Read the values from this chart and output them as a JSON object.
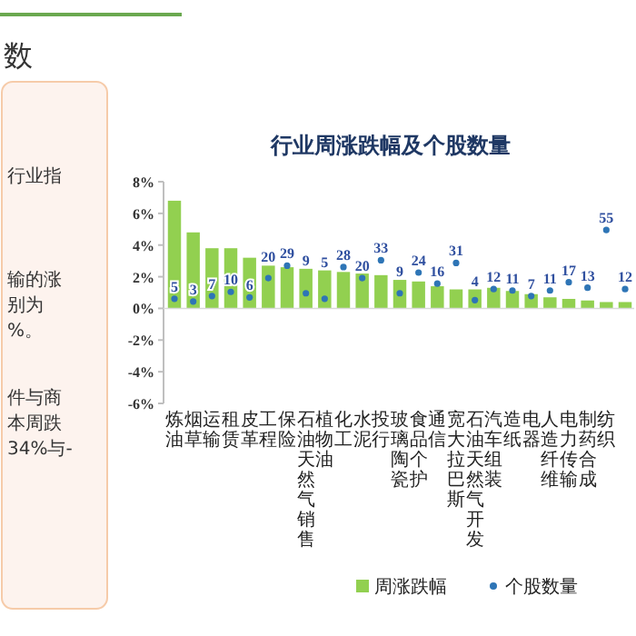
{
  "chart_data": {
    "type": "bar",
    "title": "行业周涨跌幅及个股数量",
    "categories": [
      "炼油",
      "烟草",
      "运输",
      "租赁",
      "皮革",
      "工程",
      "保险",
      "石油天然气销售",
      "植物油",
      "化工",
      "水泥",
      "投行",
      "玻璃陶瓷",
      "食品个护",
      "通信",
      "宽大拉巴斯",
      "石油天然气开发",
      "汽车组装",
      "造纸",
      "电器",
      "人造纤维",
      "电力传输",
      "制药合成",
      "纺织",
      null
    ],
    "series": [
      {
        "name": "周涨跌幅",
        "color": "#92d050",
        "values": [
          6.8,
          4.8,
          3.8,
          3.8,
          3.2,
          2.7,
          2.6,
          2.5,
          2.4,
          2.3,
          2.2,
          2.1,
          1.8,
          1.7,
          1.4,
          1.2,
          1.2,
          1.3,
          1.1,
          0.9,
          0.7,
          0.6,
          0.5,
          0.4,
          0.4
        ]
      },
      {
        "name": "个股数量",
        "type": "scatter",
        "axis": "y2",
        "color": "#2e75b6",
        "marker": "circle",
        "values": [
          5,
          3,
          7,
          10,
          6,
          20,
          29,
          9,
          5,
          28,
          20,
          33,
          9,
          24,
          16,
          31,
          4,
          12,
          11,
          7,
          11,
          17,
          13,
          55,
          12
        ],
        "value_labels": [
          "5",
          "3",
          "7",
          "10",
          "6",
          "20",
          "29",
          "9",
          "5",
          "28",
          "20",
          "33",
          "9",
          "24",
          "16",
          "31",
          "4",
          "12",
          "11",
          "7",
          "11",
          "17",
          "13",
          "55",
          "12"
        ]
      }
    ],
    "ylim": [
      -6,
      8
    ],
    "yticks": [
      {
        "value": -6,
        "label": "-6%"
      },
      {
        "value": -4,
        "label": "-4%"
      },
      {
        "value": -2,
        "label": "-2%"
      },
      {
        "value": 0,
        "label": "0%"
      },
      {
        "value": 2,
        "label": "2%"
      },
      {
        "value": 4,
        "label": "4%"
      },
      {
        "value": 6,
        "label": "6%"
      },
      {
        "value": 8,
        "label": "8%"
      }
    ],
    "y2lim": [
      -71,
      90
    ],
    "legend": "bottom",
    "annotations": [
      "数",
      "行业指",
      "输的涨",
      "别为",
      "%。",
      "件与商",
      "本周跌",
      "34%与-"
    ]
  }
}
